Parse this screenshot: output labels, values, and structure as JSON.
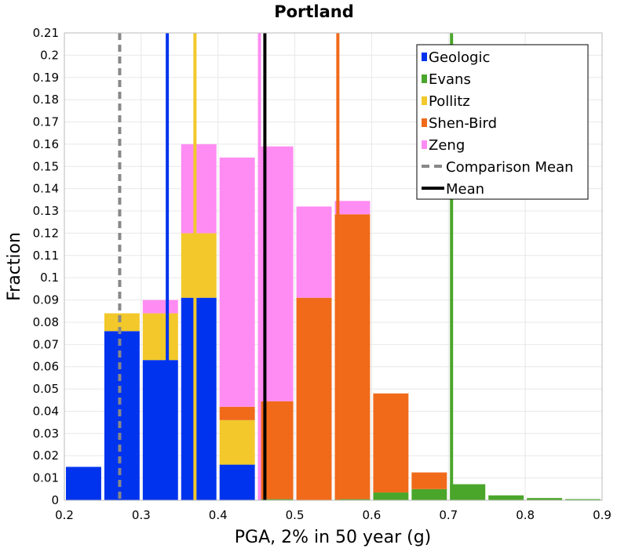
{
  "chart_data": {
    "type": "bar",
    "title": "Portland",
    "xlabel": "PGA, 2% in 50 year (g)",
    "ylabel": "Fraction",
    "xlim": [
      0.2,
      0.9
    ],
    "ylim": [
      0,
      0.21
    ],
    "bin_width": 0.05,
    "stacked": true,
    "grid": true,
    "legend_position": "top-right",
    "x_ticks": [
      "0.2",
      "0.3",
      "0.4",
      "0.5",
      "0.6",
      "0.7",
      "0.8",
      "0.9"
    ],
    "y_ticks": [
      "0",
      "0.01",
      "0.02",
      "0.03",
      "0.04",
      "0.05",
      "0.06",
      "0.07",
      "0.08",
      "0.09",
      "0.1",
      "0.11",
      "0.12",
      "0.13",
      "0.14",
      "0.15",
      "0.16",
      "0.17",
      "0.18",
      "0.19",
      "0.2",
      "0.21"
    ],
    "bin_starts": [
      0.2,
      0.25,
      0.3,
      0.35,
      0.4,
      0.45,
      0.5,
      0.55,
      0.6,
      0.65,
      0.7,
      0.75,
      0.8,
      0.85
    ],
    "series": [
      {
        "name": "Geologic",
        "color": "#0033ee",
        "values": [
          0.015,
          0.076,
          0.063,
          0.091,
          0.016,
          0,
          0,
          0,
          0,
          0,
          0,
          0,
          0,
          0
        ]
      },
      {
        "name": "Evans",
        "color": "#4aa62a",
        "values": [
          0,
          0,
          0,
          0,
          0,
          0.0005,
          0,
          0.0005,
          0.0035,
          0.005,
          0.0072,
          0.0022,
          0.001,
          0.0005
        ]
      },
      {
        "name": "Pollitz",
        "color": "#f2c82a",
        "values": [
          0,
          0.008,
          0.021,
          0.029,
          0.02,
          0,
          0,
          0,
          0,
          0,
          0,
          0,
          0,
          0
        ]
      },
      {
        "name": "Shen-Bird",
        "color": "#f06a1a",
        "values": [
          0,
          0,
          0,
          0,
          0.006,
          0.044,
          0.091,
          0.128,
          0.0445,
          0.0075,
          0,
          0,
          0,
          0
        ]
      },
      {
        "name": "Zeng",
        "color": "#ff8cf2",
        "values": [
          0,
          0,
          0.006,
          0.04,
          0.112,
          0.1145,
          0.041,
          0.006,
          0,
          0,
          0,
          0,
          0,
          0
        ]
      }
    ],
    "vlines": [
      {
        "name": "Geologic mean",
        "x": 0.334,
        "color": "#0033ee",
        "style": "solid"
      },
      {
        "name": "Pollitz mean",
        "x": 0.37,
        "color": "#f2c82a",
        "style": "solid"
      },
      {
        "name": "Zeng mean",
        "x": 0.454,
        "color": "#ff8cf2",
        "style": "solid"
      },
      {
        "name": "Shen-Bird mean",
        "x": 0.556,
        "color": "#f06a1a",
        "style": "solid"
      },
      {
        "name": "Evans mean",
        "x": 0.704,
        "color": "#4aa62a",
        "style": "solid"
      },
      {
        "name": "Comparison Mean",
        "x": 0.272,
        "color": "#888888",
        "style": "dashed"
      },
      {
        "name": "Mean",
        "x": 0.461,
        "color": "#000000",
        "style": "solid"
      }
    ],
    "legend": [
      {
        "label": "Geologic",
        "color": "#0033ee",
        "kind": "box"
      },
      {
        "label": "Evans",
        "color": "#4aa62a",
        "kind": "box"
      },
      {
        "label": "Pollitz",
        "color": "#f2c82a",
        "kind": "box"
      },
      {
        "label": "Shen-Bird",
        "color": "#f06a1a",
        "kind": "box"
      },
      {
        "label": "Zeng",
        "color": "#ff8cf2",
        "kind": "box"
      },
      {
        "label": "Comparison Mean",
        "color": "#888888",
        "kind": "dashed"
      },
      {
        "label": "Mean",
        "color": "#000000",
        "kind": "line"
      }
    ]
  }
}
